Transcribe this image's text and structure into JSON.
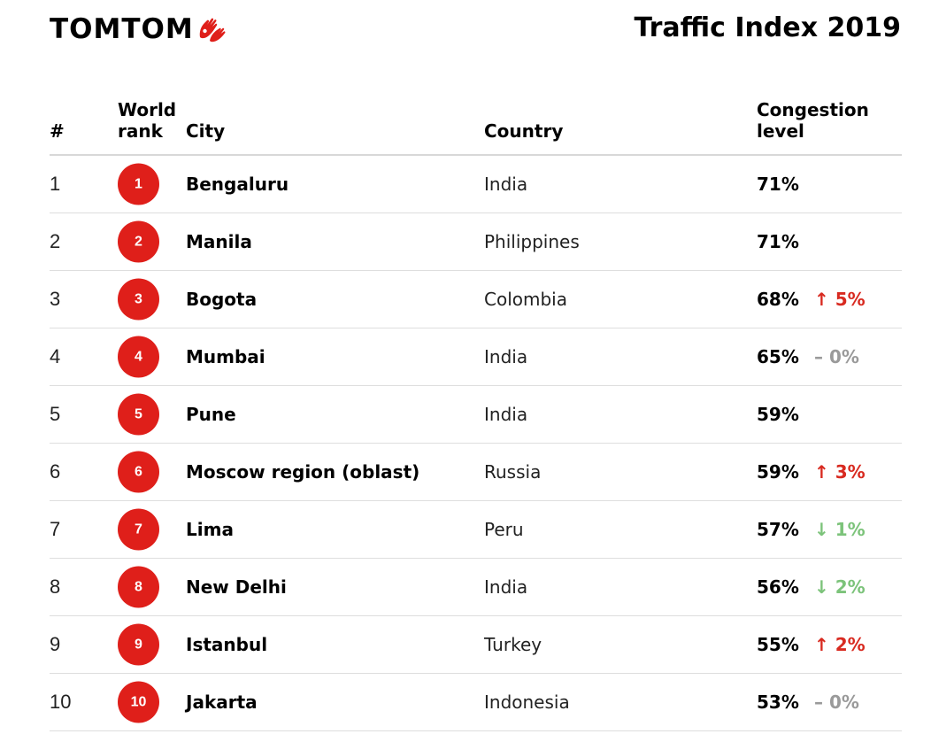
{
  "header": {
    "logo_text": "TOMTOM",
    "logo_icon": "tomtom-hands-icon",
    "title": "Traffic Index 2019"
  },
  "colors": {
    "brand_red": "#df1f1a",
    "increase": "#d82a20",
    "decrease": "#7cc37a",
    "no_change": "#9a9a9a"
  },
  "table": {
    "headers": {
      "num": "#",
      "world_rank": "World\nrank",
      "city": "City",
      "country": "Country",
      "congestion": "Congestion level"
    },
    "rows": [
      {
        "num": "1",
        "rank": "1",
        "city": "Bengaluru",
        "country": "India",
        "congestion": "71%",
        "change": "",
        "trend": ""
      },
      {
        "num": "2",
        "rank": "2",
        "city": "Manila",
        "country": "Philippines",
        "congestion": "71%",
        "change": "",
        "trend": ""
      },
      {
        "num": "3",
        "rank": "3",
        "city": "Bogota",
        "country": "Colombia",
        "congestion": "68%",
        "change": "↑ 5%",
        "trend": "up"
      },
      {
        "num": "4",
        "rank": "4",
        "city": "Mumbai",
        "country": "India",
        "congestion": "65%",
        "change": "– 0%",
        "trend": "flat"
      },
      {
        "num": "5",
        "rank": "5",
        "city": "Pune",
        "country": "India",
        "congestion": "59%",
        "change": "",
        "trend": ""
      },
      {
        "num": "6",
        "rank": "6",
        "city": "Moscow region (oblast)",
        "country": "Russia",
        "congestion": "59%",
        "change": "↑ 3%",
        "trend": "up"
      },
      {
        "num": "7",
        "rank": "7",
        "city": "Lima",
        "country": "Peru",
        "congestion": "57%",
        "change": "↓ 1%",
        "trend": "down"
      },
      {
        "num": "8",
        "rank": "8",
        "city": "New Delhi",
        "country": "India",
        "congestion": "56%",
        "change": "↓ 2%",
        "trend": "down"
      },
      {
        "num": "9",
        "rank": "9",
        "city": "Istanbul",
        "country": "Turkey",
        "congestion": "55%",
        "change": "↑ 2%",
        "trend": "up"
      },
      {
        "num": "10",
        "rank": "10",
        "city": "Jakarta",
        "country": "Indonesia",
        "congestion": "53%",
        "change": "– 0%",
        "trend": "flat"
      }
    ]
  }
}
